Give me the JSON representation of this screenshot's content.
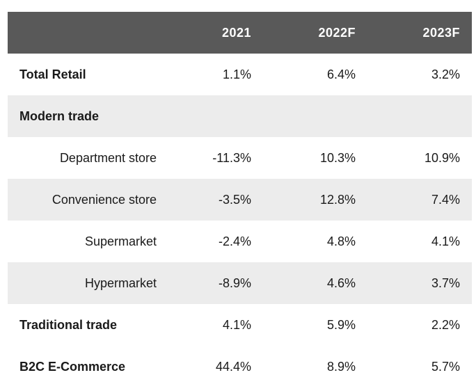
{
  "table": {
    "headers": [
      "",
      "2021",
      "2022F",
      "2023F"
    ],
    "rows": [
      {
        "label": "Total Retail",
        "v2021": "1.1%",
        "v2022": "6.4%",
        "v2023": "3.2%"
      },
      {
        "label": "Modern trade",
        "v2021": "",
        "v2022": "",
        "v2023": ""
      },
      {
        "label": "Department store",
        "v2021": "-11.3%",
        "v2022": "10.3%",
        "v2023": "10.9%"
      },
      {
        "label": "Convenience store",
        "v2021": "-3.5%",
        "v2022": "12.8%",
        "v2023": "7.4%"
      },
      {
        "label": "Supermarket",
        "v2021": "-2.4%",
        "v2022": "4.8%",
        "v2023": "4.1%"
      },
      {
        "label": "Hypermarket",
        "v2021": "-8.9%",
        "v2022": "4.6%",
        "v2023": "3.7%"
      },
      {
        "label": "Traditional trade",
        "v2021": "4.1%",
        "v2022": "5.9%",
        "v2023": "2.2%"
      },
      {
        "label": "B2C E-Commerce",
        "v2021": "44.4%",
        "v2022": "8.9%",
        "v2023": "5.7%"
      }
    ]
  },
  "colors": {
    "header_bg": "#595959",
    "shaded_row_bg": "#ececec",
    "header_text": "#ffffff"
  }
}
